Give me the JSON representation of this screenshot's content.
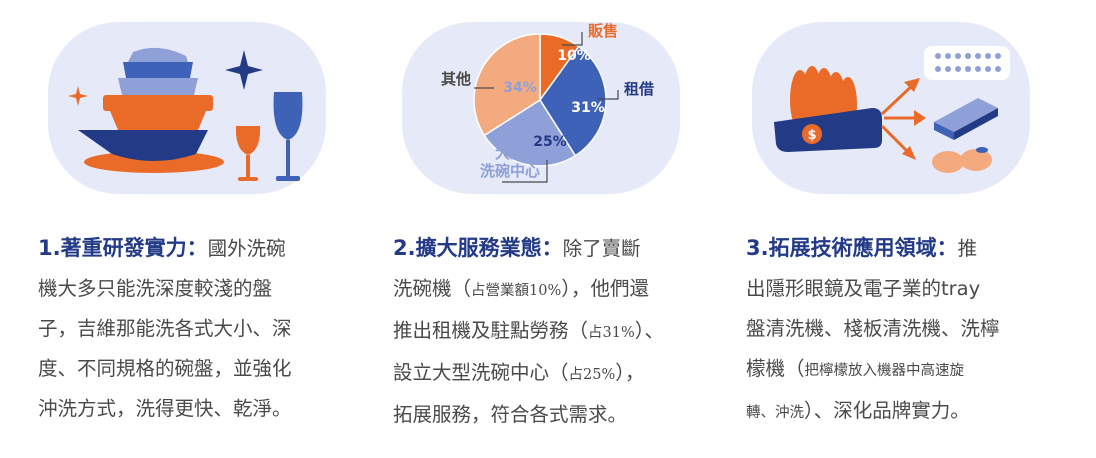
{
  "colors": {
    "navy": "#233a87",
    "blue": "#3d62b7",
    "light_blue": "#8fa0d8",
    "orange": "#ea6a28",
    "peach": "#f3aa7e",
    "card_bg": "#e6e9f7",
    "text": "#4a4a4a"
  },
  "illustrations": {
    "one": {
      "icons": [
        "dish-stack-icon",
        "wine-glass-icon",
        "sparkle-icon"
      ]
    },
    "three": {
      "icons": [
        "dish-rack-icon",
        "arrow-icon",
        "contact-lens-tray-icon",
        "metal-plate-icon",
        "lemon-icon"
      ]
    }
  },
  "chart_data": {
    "type": "pie",
    "slices": [
      {
        "label": "販售",
        "value": 10,
        "value_label": "10%",
        "color": "#ea6a28"
      },
      {
        "label": "租借",
        "value": 31,
        "value_label": "31%",
        "color": "#3d62b7"
      },
      {
        "label": "大型\n洗碗中心",
        "value": 25,
        "value_label": "25%",
        "color": "#8fa0d8"
      },
      {
        "label": "其他",
        "value": 34,
        "value_label": "34%",
        "color": "#f3aa7e"
      }
    ]
  },
  "sections": [
    {
      "heading": "1.著重研發實力：",
      "lines": [
        "國外洗碗",
        "機大多只能洗深度較淺的盤",
        "子，吉維那能洗各式大小、深",
        "度、不同規格的碗盤，並強化",
        "沖洗方式，洗得更快、乾淨。"
      ]
    },
    {
      "heading": "2.擴大服務業態：",
      "first": "除了賣斷",
      "line2_a": "洗碗機（",
      "line2_small": "占營業額10%",
      "line2_b": "），他們還",
      "line3_a": "推出租機及駐點勞務（",
      "line3_small": "占31%",
      "line3_b": "）、",
      "line4_a": "設立大型洗碗中心（",
      "line4_small": "占25%",
      "line4_b": "），",
      "line5": "拓展服務，符合各式需求。"
    },
    {
      "heading": "3.拓展技術應用領域：",
      "first": "推",
      "line2": "出隱形眼鏡及電子業的tray",
      "line3": "盤清洗機、棧板清洗機、洗檸",
      "line4_a": "檬機（",
      "line4_small": "把檸檬放入機器中高速旋",
      "line5_small": "轉、沖洗",
      "line5_b": "）、深化品牌實力。"
    }
  ]
}
